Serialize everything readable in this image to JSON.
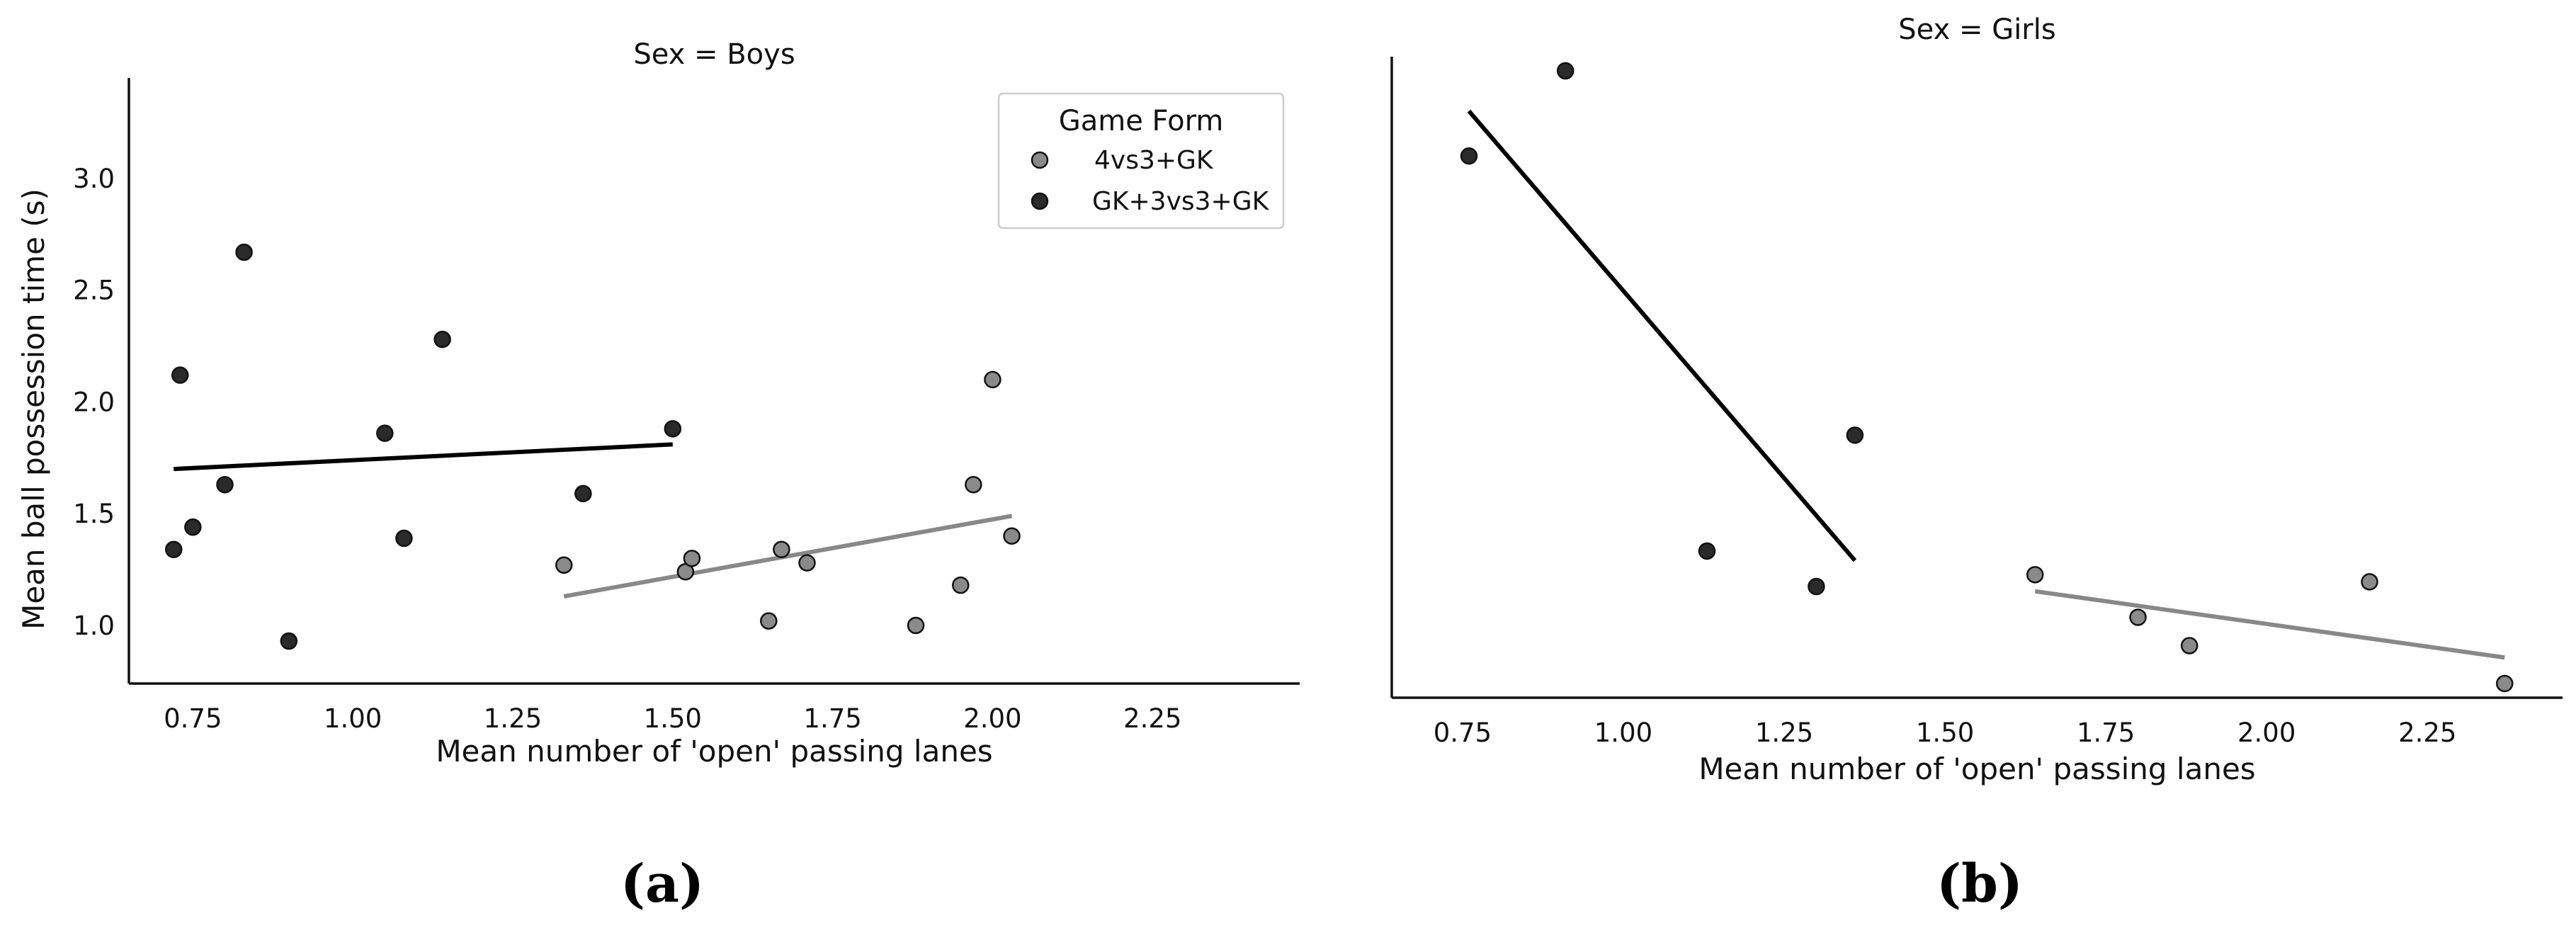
{
  "figure": {
    "captions": [
      "(a)",
      "(b)"
    ]
  },
  "colors": {
    "4vs3+GK": "#8a8a8a",
    "GK+3vs3+GK": "#2a2a2a",
    "line_4vs3+GK": "#888888",
    "line_GK+3vs3+GK": "#000000"
  },
  "chart_data": [
    {
      "type": "scatter",
      "title": "Sex = Boys",
      "xlabel": "Mean number of 'open' passing lanes",
      "ylabel": "Mean ball possession time (s)",
      "xlim": [
        0.65,
        2.48
      ],
      "ylim": [
        0.74,
        3.45
      ],
      "xticks": [
        0.75,
        1.0,
        1.25,
        1.5,
        1.75,
        2.0,
        2.25
      ],
      "xtick_labels": [
        "0.75",
        "1.00",
        "1.25",
        "1.50",
        "1.75",
        "2.00",
        "2.25"
      ],
      "yticks": [
        1.0,
        1.5,
        2.0,
        2.5,
        3.0
      ],
      "ytick_labels": [
        "1.0",
        "1.5",
        "2.0",
        "2.5",
        "3.0"
      ],
      "grid": false,
      "legend": {
        "title": "Game Form",
        "placement": "top-right",
        "entries": [
          "4vs3+GK",
          "GK+3vs3+GK"
        ]
      },
      "series": [
        {
          "name": "4vs3+GK",
          "points": [
            [
              1.33,
              1.27
            ],
            [
              1.52,
              1.24
            ],
            [
              1.53,
              1.3
            ],
            [
              1.65,
              1.02
            ],
            [
              1.67,
              1.34
            ],
            [
              1.71,
              1.28
            ],
            [
              1.88,
              1.0
            ],
            [
              1.95,
              1.18
            ],
            [
              1.97,
              1.63
            ],
            [
              2.0,
              2.1
            ],
            [
              2.03,
              1.4
            ]
          ],
          "fit": [
            [
              1.33,
              1.13
            ],
            [
              2.03,
              1.49
            ]
          ]
        },
        {
          "name": "GK+3vs3+GK",
          "points": [
            [
              0.72,
              1.34
            ],
            [
              0.73,
              2.12
            ],
            [
              0.75,
              1.44
            ],
            [
              0.8,
              1.63
            ],
            [
              0.83,
              2.67
            ],
            [
              0.9,
              0.93
            ],
            [
              1.05,
              1.86
            ],
            [
              1.08,
              1.39
            ],
            [
              1.14,
              2.28
            ],
            [
              1.36,
              1.59
            ],
            [
              1.5,
              1.88
            ]
          ],
          "fit": [
            [
              0.72,
              1.7
            ],
            [
              1.5,
              1.81
            ]
          ]
        }
      ]
    },
    {
      "type": "scatter",
      "title": "Sex = Girls",
      "xlabel": "Mean number of 'open' passing lanes",
      "ylabel": "",
      "xlim": [
        0.64,
        2.46
      ],
      "ylim": [
        0.74,
        3.45
      ],
      "xticks": [
        0.75,
        1.0,
        1.25,
        1.5,
        1.75,
        2.0,
        2.25
      ],
      "xtick_labels": [
        "0.75",
        "1.00",
        "1.25",
        "1.50",
        "1.75",
        "2.00",
        "2.25"
      ],
      "yticks": [],
      "ytick_labels": [],
      "grid": false,
      "series": [
        {
          "name": "4vs3+GK",
          "points": [
            [
              1.64,
              1.26
            ],
            [
              1.8,
              1.08
            ],
            [
              1.88,
              0.96
            ],
            [
              2.16,
              1.23
            ],
            [
              2.37,
              0.8
            ]
          ],
          "fit": [
            [
              1.64,
              1.19
            ],
            [
              2.37,
              0.91
            ]
          ]
        },
        {
          "name": "GK+3vs3+GK",
          "points": [
            [
              0.76,
              3.03
            ],
            [
              0.91,
              3.39
            ],
            [
              1.13,
              1.36
            ],
            [
              1.3,
              1.21
            ],
            [
              1.36,
              1.85
            ]
          ],
          "fit": [
            [
              0.76,
              3.22
            ],
            [
              1.36,
              1.32
            ]
          ]
        }
      ]
    }
  ]
}
